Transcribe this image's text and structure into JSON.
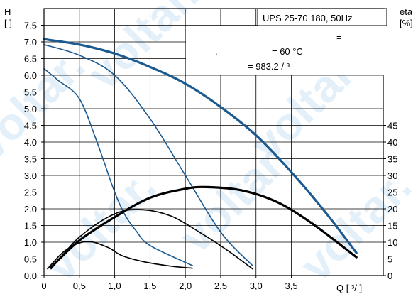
{
  "chart_data": {
    "type": "line",
    "title": "UPS 25-70 180, 50Hz",
    "annotations": {
      "line1": "=",
      "line2a": ".",
      "line2b": "= 60 °C",
      "line3": "= 983.2   /  ³"
    },
    "y_left": {
      "label_top": "H",
      "label_unit": "[  ]",
      "range": [
        0,
        8
      ],
      "ticks": [
        0.0,
        0.5,
        1.0,
        1.5,
        2.0,
        2.5,
        3.0,
        3.5,
        4.0,
        4.5,
        5.0,
        5.5,
        6.0,
        6.5,
        7.0,
        7.5
      ],
      "tick_labels": [
        "0.0",
        "0.5",
        "1.0",
        "1.5",
        "2.0",
        "2.5",
        "3.0",
        "3.5",
        "4.0",
        "4.5",
        "5.0",
        "5.5",
        "6.0",
        "6.5",
        "7.0",
        "7.5"
      ]
    },
    "y_right": {
      "label_top": "eta",
      "label_unit": "[%]",
      "range": [
        0,
        8
      ],
      "ticks": [
        0,
        5,
        10,
        15,
        20,
        25,
        30,
        35,
        40,
        45
      ],
      "tick_labels": [
        "0",
        "5",
        "10",
        "15",
        "20",
        "25",
        "30",
        "35",
        "40",
        "45"
      ]
    },
    "x": {
      "label": "Q [  ³/  ]",
      "range": [
        0,
        4.8
      ],
      "ticks": [
        0,
        0.5,
        1.0,
        1.5,
        2.0,
        2.5,
        3.0,
        3.5
      ],
      "tick_labels": [
        "0",
        "0,5",
        "1,0",
        "1,5",
        "2,0",
        "2,5",
        "3,0",
        "3,5"
      ]
    },
    "grid": true,
    "series": [
      {
        "color": "#1a5a90",
        "width": 3.2,
        "x": [
          0,
          0.5,
          1.0,
          1.5,
          2.0,
          2.5,
          3.0,
          3.5,
          4.0,
          4.42
        ],
        "y": [
          7.08,
          6.92,
          6.65,
          6.25,
          5.75,
          5.05,
          4.2,
          3.1,
          1.85,
          0.68
        ]
      },
      {
        "color": "#1a5a90",
        "width": 1.6,
        "x": [
          0,
          0.5,
          1.0,
          1.5,
          2.0,
          2.5,
          2.95
        ],
        "y": [
          6.92,
          6.6,
          6.0,
          4.7,
          3.0,
          1.3,
          0.3
        ]
      },
      {
        "color": "#1a5a90",
        "width": 1.6,
        "x": [
          0,
          0.2,
          0.5,
          0.75,
          1.0,
          1.15,
          1.3,
          1.5,
          2.1
        ],
        "y": [
          6.2,
          5.85,
          5.3,
          4.0,
          2.5,
          1.8,
          1.35,
          0.9,
          0.3
        ]
      },
      {
        "color": "#000000",
        "width": 3.2,
        "x": [
          0.1,
          0.5,
          1.0,
          1.5,
          2.0,
          2.3,
          2.8,
          3.3,
          3.8,
          4.42
        ],
        "y": [
          0.25,
          1.05,
          1.75,
          2.33,
          2.6,
          2.65,
          2.55,
          2.2,
          1.55,
          0.55
        ]
      },
      {
        "color": "#000000",
        "width": 1.6,
        "x": [
          0.1,
          0.5,
          1.0,
          1.4,
          1.8,
          2.2,
          2.6,
          2.95
        ],
        "y": [
          0.2,
          1.15,
          1.85,
          1.97,
          1.78,
          1.3,
          0.75,
          0.2
        ]
      },
      {
        "color": "#000000",
        "width": 1.6,
        "x": [
          0.05,
          0.3,
          0.6,
          0.9,
          1.1,
          1.4,
          1.8,
          2.1
        ],
        "y": [
          0.2,
          0.75,
          1.02,
          0.85,
          0.6,
          0.42,
          0.28,
          0.22
        ]
      }
    ]
  }
}
